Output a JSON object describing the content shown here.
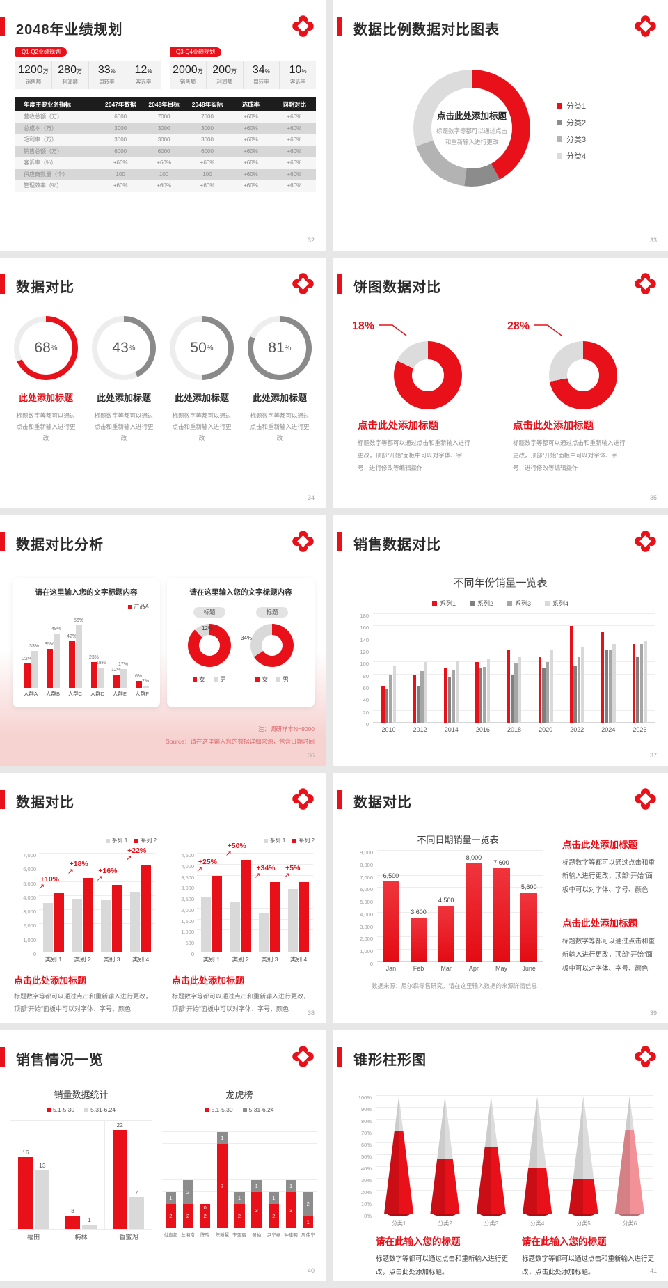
{
  "slides": {
    "s1": {
      "page": "32",
      "title": "2048年业绩规划",
      "groups": [
        {
          "badge": "Q1-Q2业绩规划",
          "stats": [
            {
              "value": "1200",
              "unit": "万",
              "label": "销售额"
            },
            {
              "value": "280",
              "unit": "万",
              "label": "利润额"
            },
            {
              "value": "33",
              "unit": "%",
              "label": "周转率"
            },
            {
              "value": "12",
              "unit": "%",
              "label": "客诉率"
            }
          ]
        },
        {
          "badge": "Q3-Q4业绩规划",
          "stats": [
            {
              "value": "2000",
              "unit": "万",
              "label": "销售额"
            },
            {
              "value": "200",
              "unit": "万",
              "label": "利润额"
            },
            {
              "value": "34",
              "unit": "%",
              "label": "周转率"
            },
            {
              "value": "10",
              "unit": "%",
              "label": "客诉率"
            }
          ]
        }
      ],
      "table": {
        "headers": [
          "年度主要业务指标",
          "2047年数据",
          "2048年目标",
          "2048年实际",
          "达成率",
          "同期对比"
        ],
        "rows": [
          [
            "营收总额（万）",
            "6000",
            "7000",
            "7000",
            "+60%",
            "+60%"
          ],
          [
            "总成本（万）",
            "3000",
            "3000",
            "3000",
            "+60%",
            "+60%"
          ],
          [
            "毛利率（万）",
            "3000",
            "3000",
            "3000",
            "+60%",
            "+60%"
          ],
          [
            "销售总额（万）",
            "6000",
            "6000",
            "6000",
            "+60%",
            "+60%"
          ],
          [
            "客诉率（%）",
            "+60%",
            "+60%",
            "+60%",
            "+60%",
            "+60%"
          ],
          [
            "供应商数量（个）",
            "100",
            "100",
            "100",
            "+60%",
            "+60%"
          ],
          [
            "管理效率（%）",
            "+60%",
            "+60%",
            "+60%",
            "+60%",
            "+60%"
          ]
        ]
      }
    },
    "s2": {
      "page": "33",
      "title": "数据比例数据对比图表",
      "donut": {
        "type": "pie",
        "values": [
          42,
          10,
          18,
          30
        ],
        "colors": [
          "#e8111a",
          "#8c8c8c",
          "#b3b3b3",
          "#dcdcdc"
        ],
        "center_title": "点击此处添加标题",
        "center_body": "标题数字等都可以通过点击和重新输入进行更改"
      },
      "legend": [
        {
          "label": "分类1",
          "color": "#e8111a"
        },
        {
          "label": "分类2",
          "color": "#8c8c8c"
        },
        {
          "label": "分类3",
          "color": "#b3b3b3"
        },
        {
          "label": "分类4",
          "color": "#dcdcdc"
        }
      ]
    },
    "s3": {
      "page": "34",
      "title": "数据对比",
      "body": "标题数字等都可以通过点击和重新输入进行更改",
      "items": [
        {
          "pct": 68,
          "color": "#e8111a",
          "title_color": "#e8111a",
          "title": "此处添加标题"
        },
        {
          "pct": 43,
          "color": "#8a8a8a",
          "title_color": "#2f2f2f",
          "title": "此处添加标题"
        },
        {
          "pct": 50,
          "color": "#8a8a8a",
          "title_color": "#2f2f2f",
          "title": "此处添加标题"
        },
        {
          "pct": 81,
          "color": "#8a8a8a",
          "title_color": "#2f2f2f",
          "title": "此处添加标题"
        }
      ]
    },
    "s4": {
      "page": "35",
      "title": "饼图数据对比",
      "items": [
        {
          "pct": 18,
          "label": "18%",
          "title": "点击此处添加标题",
          "body": "标题数字等都可以通过点击和重新输入进行更改，顶部“开始”面板中可以对字体、字号、进行修改等编辑操作"
        },
        {
          "pct": 28,
          "label": "28%",
          "title": "点击此处添加标题",
          "body": "标题数字等都可以通过点击和重新输入进行更改，顶部“开始”面板中可以对字体、字号、进行修改等编辑操作"
        }
      ]
    },
    "s5": {
      "page": "36",
      "title": "数据对比分析",
      "left": {
        "type": "bar",
        "title": "请在这里输入您的文字标题内容",
        "legend": "产品A",
        "cats": [
          "人群A",
          "人群B",
          "人群C",
          "人群D",
          "人群E",
          "人群F"
        ],
        "red": [
          22,
          35,
          42,
          23,
          12,
          6
        ],
        "gray": [
          33,
          49,
          56,
          18,
          17,
          2
        ],
        "ymax": 60
      },
      "right": {
        "title": "请在这里输入您的文字标题内容",
        "pill": "标题",
        "donuts": [
          {
            "gray_pct": 12,
            "label": "12%"
          },
          {
            "gray_pct": 34,
            "label": "34%"
          }
        ],
        "legend": [
          {
            "label": "女",
            "color": "#e8111a"
          },
          {
            "label": "男",
            "color": "#d9d9d9"
          }
        ]
      },
      "note": "注：调研样本N=9000",
      "source": "Source：请在这里输入您的数据详细来源，包含日期时间"
    },
    "s6": {
      "page": "37",
      "title": "销售数据对比",
      "chart": {
        "type": "bar",
        "title": "不同年份销量一览表",
        "ymax": 180,
        "ystep": 20,
        "legend": [
          {
            "label": "系列1",
            "color": "#e8111a"
          },
          {
            "label": "系列2",
            "color": "#7f7f7f"
          },
          {
            "label": "系列3",
            "color": "#a6a6a6"
          },
          {
            "label": "系列4",
            "color": "#d9d9d9"
          }
        ],
        "cats": [
          "2010",
          "2012",
          "2014",
          "2016",
          "2018",
          "2020",
          "2022",
          "2024",
          "2026"
        ],
        "series": [
          {
            "name": "系列1",
            "color": "#e8111a",
            "values": [
              60,
              80,
              90,
              100,
              120,
              110,
              160,
              150,
              130
            ]
          },
          {
            "name": "系列2",
            "color": "#7f7f7f",
            "values": [
              55,
              60,
              75,
              90,
              80,
              90,
              95,
              120,
              110
            ]
          },
          {
            "name": "系列3",
            "color": "#a6a6a6",
            "values": [
              80,
              85,
              88,
              92,
              98,
              100,
              110,
              120,
              130
            ]
          },
          {
            "name": "系列4",
            "color": "#d9d9d9",
            "values": [
              95,
              100,
              102,
              105,
              110,
              120,
              125,
              130,
              135
            ]
          }
        ]
      }
    },
    "s7": {
      "page": "38",
      "title": "数据对比",
      "panels": [
        {
          "type": "bar",
          "legend": [
            {
              "label": "系列 1",
              "color": "#d9d9d9"
            },
            {
              "label": "系列 2",
              "color": "#e8111a"
            }
          ],
          "ymax": 7000,
          "ystep": 1000,
          "cats": [
            "类别 1",
            "类别 2",
            "类别 3",
            "类别 4"
          ],
          "gray": [
            3500,
            3800,
            3700,
            4300
          ],
          "red": [
            4200,
            5300,
            4800,
            6200
          ],
          "callouts": [
            "+10%",
            "+18%",
            "+16%",
            "+22%"
          ],
          "title": "点击此处添加标题",
          "body": "标题数字等都可以通过点击和重新输入进行更改，顶部“开始”面板中可以对字体、字号、颜色"
        },
        {
          "type": "bar",
          "legend": [
            {
              "label": "系列 1",
              "color": "#d9d9d9"
            },
            {
              "label": "系列 2",
              "color": "#e8111a"
            }
          ],
          "ymax": 4500,
          "ystep": 500,
          "cats": [
            "类别 1",
            "类别 2",
            "类别 3",
            "类别 4"
          ],
          "gray": [
            2500,
            2300,
            1800,
            2900
          ],
          "red": [
            3500,
            4200,
            3200,
            3200
          ],
          "callouts": [
            "+25%",
            "+50%",
            "+34%",
            "+5%"
          ],
          "title": "点击此处添加标题",
          "body": "标题数字等都可以通过点击和重新输入进行更改，顶部“开始”面板中可以对字体、字号、颜色"
        }
      ]
    },
    "s8": {
      "page": "39",
      "title": "数据对比",
      "chart": {
        "type": "bar",
        "title": "不同日期销量一览表",
        "ymax": 9000,
        "ystep": 1000,
        "cats": [
          "Jan",
          "Feb",
          "Mar",
          "Apr",
          "May",
          "June"
        ],
        "values": [
          6500,
          3600,
          4560,
          8000,
          7600,
          5600
        ],
        "labels": [
          "6,500",
          "3,600",
          "4,560",
          "8,000",
          "7,600",
          "5,600"
        ]
      },
      "source": "数据来源：尼尔森零售研究，请在这里输入数据的来源详情信息",
      "blocks": [
        {
          "title": "点击此处添加标题",
          "body": "标题数字等都可以通过点击和重新输入进行更改，顶部“开始”面板中可以对字体、字号、颜色"
        },
        {
          "title": "点击此处添加标题",
          "body": "标题数字等都可以通过点击和重新输入进行更改，顶部“开始”面板中可以对字体、字号、颜色"
        }
      ]
    },
    "s9": {
      "page": "40",
      "title": "销售情况一览",
      "left": {
        "type": "bar",
        "title": "销量数据统计",
        "legend": [
          {
            "label": "5.1-5.30",
            "color": "#e8111a"
          },
          {
            "label": "5.31-6.24",
            "color": "#d9d9d9"
          }
        ],
        "cats": [
          "福田",
          "梅林",
          "香蜜湖"
        ],
        "red": [
          16,
          3,
          22
        ],
        "gray": [
          13,
          1,
          7
        ],
        "ymax": 24
      },
      "right": {
        "type": "bar",
        "title": "龙虎榜",
        "legend": [
          {
            "label": "5.1-5.30",
            "color": "#e8111a"
          },
          {
            "label": "5.31-6.24",
            "color": "#8c8c8c"
          }
        ],
        "cats": [
          "付直超",
          "左湘南",
          "陈玲",
          "陈新慧",
          "李亚丽",
          "蜀柏",
          "尹华禄",
          "钟建明",
          "周伟华"
        ],
        "red": [
          2,
          2,
          2,
          7,
          2,
          3,
          2,
          3,
          1
        ],
        "gray": [
          1,
          2,
          0,
          1,
          1,
          1,
          1,
          1,
          2
        ],
        "ymax": 9
      }
    },
    "s10": {
      "page": "41",
      "title": "锥形柱形图",
      "chart": {
        "type": "bar",
        "ymax": 100,
        "ystep": 10,
        "cats": [
          "分类1",
          "分类2",
          "分类3",
          "分类4",
          "分类5",
          "分类6"
        ],
        "values": [
          70,
          47,
          57,
          39,
          30,
          71
        ],
        "colors": [
          "#e8111a",
          "#e8111a",
          "#e8111a",
          "#e8111a",
          "#e8111a",
          "#f29298"
        ]
      },
      "blocks": [
        {
          "title": "请在此输入您的标题",
          "body": "标题数字等都可以通过点击和重新输入进行更改，点击此处添加标题。"
        },
        {
          "title": "请在此输入您的标题",
          "body": "标题数字等都可以通过点击和重新输入进行更改，点击此处添加标题。"
        }
      ]
    }
  }
}
